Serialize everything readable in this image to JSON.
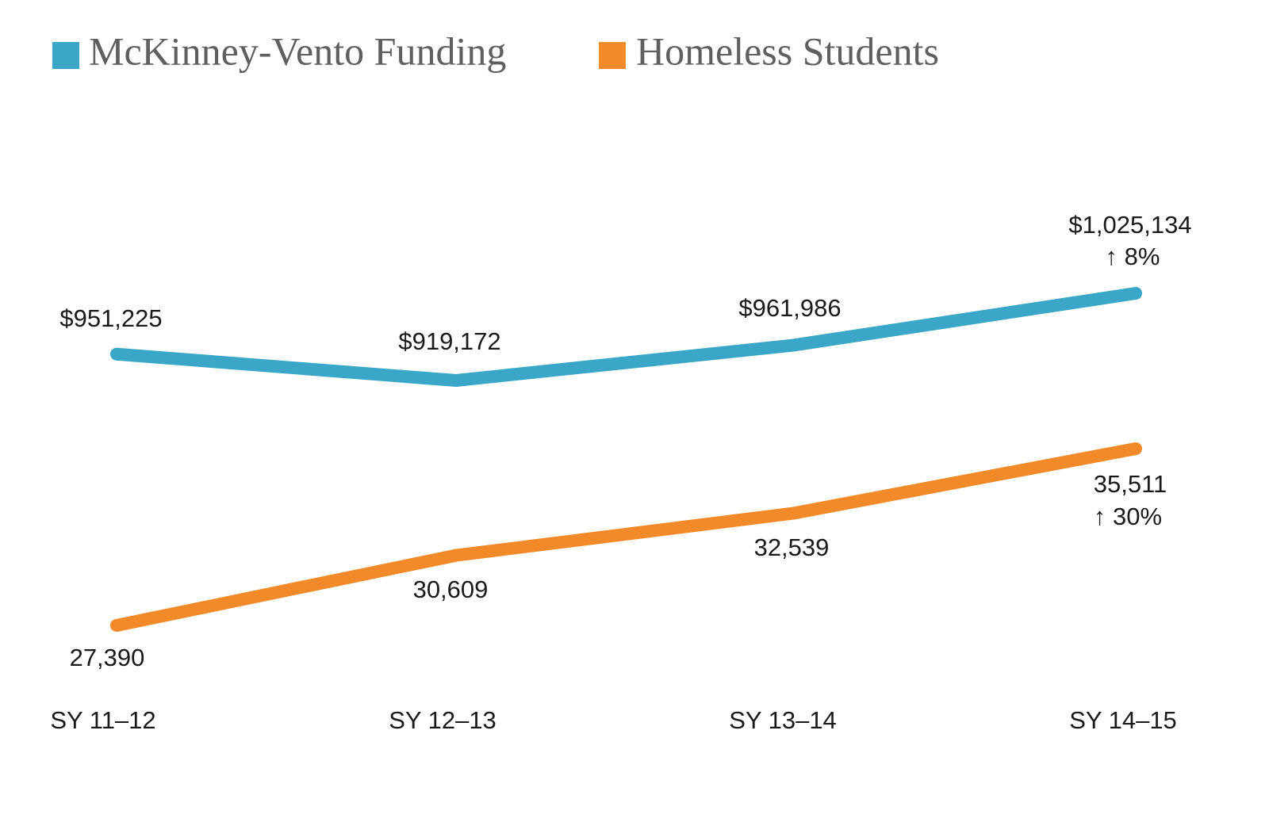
{
  "chart_data": {
    "type": "line",
    "categories": [
      "SY 11–12",
      "SY 12–13",
      "SY 13–14",
      "SY 14–15"
    ],
    "series": [
      {
        "name": "McKinney-Vento Funding",
        "color": "#3aa6c8",
        "values": [
          951225,
          919172,
          961986,
          1025134
        ],
        "value_labels": [
          "$951,225",
          "$919,172",
          "$961,986",
          "$1,025,134"
        ],
        "annotation": "↑ 8%"
      },
      {
        "name": "Homeless Students",
        "color": "#f28a2a",
        "values": [
          27390,
          30609,
          32539,
          35511
        ],
        "value_labels": [
          "27,390",
          "30,609",
          "32,539",
          "35,511"
        ],
        "annotation": "↑ 30%"
      }
    ]
  }
}
